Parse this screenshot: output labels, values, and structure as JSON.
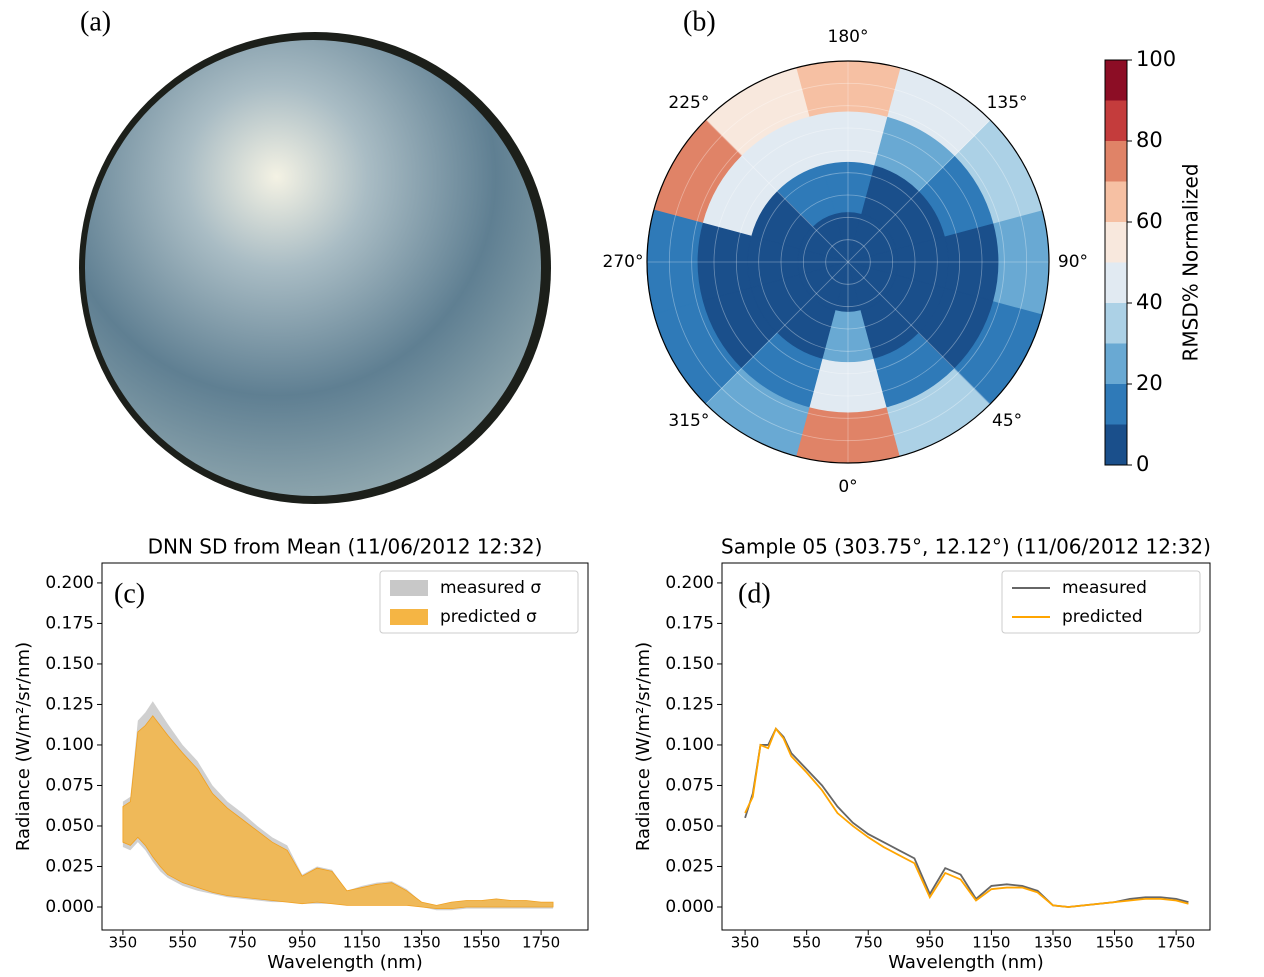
{
  "panel_labels": [
    "(a)",
    "(b)",
    "(c)",
    "(d)"
  ],
  "chart_data": [
    {
      "type": "polar-contour",
      "angle_ticks": [
        {
          "value": 0,
          "label": "0°"
        },
        {
          "value": 45,
          "label": "45°"
        },
        {
          "value": 90,
          "label": "90°"
        },
        {
          "value": 135,
          "label": "135°"
        },
        {
          "value": 180,
          "label": "180°"
        },
        {
          "value": 225,
          "label": "225°"
        },
        {
          "value": 270,
          "label": "270°"
        },
        {
          "value": 315,
          "label": "315°"
        }
      ],
      "theta": [
        0,
        30,
        60,
        90,
        120,
        150,
        180,
        210,
        240,
        270,
        300,
        330
      ],
      "values": [
        [
          5,
          5,
          5,
          5,
          5,
          5,
          5,
          5,
          5,
          5,
          5,
          5
        ],
        [
          20,
          8,
          6,
          6,
          6,
          6,
          15,
          12,
          6,
          6,
          6,
          6
        ],
        [
          45,
          15,
          8,
          8,
          15,
          25,
          45,
          40,
          45,
          8,
          8,
          12
        ],
        [
          70,
          35,
          18,
          22,
          35,
          45,
          65,
          55,
          75,
          15,
          12,
          25
        ]
      ],
      "levels": [
        0,
        10,
        20,
        30,
        40,
        50,
        60,
        70,
        80,
        90,
        100
      ],
      "colors": [
        "#1a4f8b",
        "#2f7ab8",
        "#69a9d3",
        "#acd1e6",
        "#e1eaf2",
        "#f8e8dd",
        "#f6c0a3",
        "#e08367",
        "#c43c3c",
        "#8c0d25"
      ],
      "cbar_ticks": [
        0,
        20,
        40,
        60,
        80,
        100
      ],
      "cbar_label": "RMSD% Normalized"
    },
    {
      "type": "band",
      "title": "DNN SD from Mean (11/06/2012 12:32)",
      "xlabel": "Wavelength (nm)",
      "ylabel": "Radiance (W/m²/sr/nm)",
      "xlim": [
        280,
        1907
      ],
      "ylim": [
        -0.0142,
        0.2123
      ],
      "xticks": [
        350,
        550,
        750,
        950,
        1150,
        1350,
        1550,
        1750
      ],
      "yticks": [
        {
          "value": 0,
          "label": "0.000"
        },
        {
          "value": 0.025,
          "label": "0.025"
        },
        {
          "value": 0.05,
          "label": "0.050"
        },
        {
          "value": 0.075,
          "label": "0.075"
        },
        {
          "value": 0.1,
          "label": "0.100"
        },
        {
          "value": 0.125,
          "label": "0.125"
        },
        {
          "value": 0.15,
          "label": "0.150"
        },
        {
          "value": 0.175,
          "label": "0.175"
        },
        {
          "value": 0.2,
          "label": "0.200"
        }
      ],
      "legend": "upper right",
      "x": [
        350,
        375,
        400,
        425,
        450,
        475,
        500,
        550,
        600,
        650,
        700,
        750,
        800,
        850,
        900,
        950,
        1000,
        1050,
        1100,
        1150,
        1200,
        1250,
        1300,
        1350,
        1400,
        1450,
        1500,
        1550,
        1600,
        1650,
        1700,
        1750,
        1790
      ],
      "series": [
        {
          "name": "measured σ",
          "color": "#c8c8c8",
          "upper": [
            0.065,
            0.068,
            0.115,
            0.12,
            0.127,
            0.12,
            0.113,
            0.1,
            0.09,
            0.075,
            0.065,
            0.058,
            0.05,
            0.043,
            0.038,
            0.02,
            0.025,
            0.023,
            0.01,
            0.013,
            0.015,
            0.016,
            0.011,
            0.003,
            0.001,
            0.003,
            0.004,
            0.004,
            0.005,
            0.004,
            0.004,
            0.003,
            0.003
          ],
          "lower": [
            0.037,
            0.035,
            0.04,
            0.035,
            0.028,
            0.022,
            0.018,
            0.013,
            0.01,
            0.008,
            0.006,
            0.005,
            0.004,
            0.003,
            0.003,
            0.002,
            0.002,
            0.002,
            0.001,
            0.001,
            0.001,
            0.001,
            0.001,
            0,
            -0.002,
            -0.002,
            -0.001,
            -0.001,
            -0.001,
            -0.001,
            -0.001,
            -0.001,
            -0.001
          ]
        },
        {
          "name": "predicted σ",
          "color": "#f5b544",
          "upper": [
            0.062,
            0.065,
            0.108,
            0.112,
            0.118,
            0.112,
            0.106,
            0.095,
            0.085,
            0.07,
            0.061,
            0.054,
            0.047,
            0.04,
            0.035,
            0.019,
            0.024,
            0.022,
            0.01,
            0.012,
            0.014,
            0.015,
            0.01,
            0.003,
            0.001,
            0.003,
            0.004,
            0.004,
            0.005,
            0.004,
            0.004,
            0.003,
            0.003
          ],
          "lower": [
            0.04,
            0.038,
            0.043,
            0.038,
            0.031,
            0.025,
            0.02,
            0.015,
            0.012,
            0.009,
            0.007,
            0.006,
            0.005,
            0.004,
            0.003,
            0.002,
            0.003,
            0.002,
            0.001,
            0.001,
            0.001,
            0.001,
            0.001,
            0,
            -0.001,
            -0.001,
            0,
            0,
            0,
            0,
            0,
            0,
            0
          ]
        }
      ]
    },
    {
      "type": "line",
      "title": "Sample 05 (303.75°, 12.12°) (11/06/2012 12:32)",
      "xlabel": "Wavelength (nm)",
      "ylabel": "Radiance (W/m²/sr/nm)",
      "xlim": [
        275,
        1860
      ],
      "ylim": [
        -0.0142,
        0.2123
      ],
      "xticks": [
        350,
        550,
        750,
        950,
        1150,
        1350,
        1550,
        1750
      ],
      "yticks": [
        {
          "value": 0,
          "label": "0.000"
        },
        {
          "value": 0.025,
          "label": "0.025"
        },
        {
          "value": 0.05,
          "label": "0.050"
        },
        {
          "value": 0.075,
          "label": "0.075"
        },
        {
          "value": 0.1,
          "label": "0.100"
        },
        {
          "value": 0.125,
          "label": "0.125"
        },
        {
          "value": 0.15,
          "label": "0.150"
        },
        {
          "value": 0.175,
          "label": "0.175"
        },
        {
          "value": 0.2,
          "label": "0.200"
        }
      ],
      "legend": "upper right",
      "x": [
        350,
        375,
        400,
        425,
        450,
        475,
        500,
        550,
        600,
        650,
        700,
        750,
        800,
        850,
        900,
        950,
        1000,
        1050,
        1100,
        1150,
        1200,
        1250,
        1300,
        1350,
        1400,
        1450,
        1500,
        1550,
        1600,
        1650,
        1700,
        1750,
        1790
      ],
      "series": [
        {
          "name": "measured",
          "color": "#666666",
          "values": [
            0.055,
            0.07,
            0.1,
            0.1,
            0.11,
            0.105,
            0.095,
            0.085,
            0.075,
            0.062,
            0.052,
            0.045,
            0.04,
            0.035,
            0.03,
            0.008,
            0.024,
            0.02,
            0.005,
            0.013,
            0.014,
            0.013,
            0.01,
            0.001,
            0,
            0.001,
            0.002,
            0.003,
            0.005,
            0.006,
            0.006,
            0.005,
            0.003
          ]
        },
        {
          "name": "predicted",
          "color": "#ffa500",
          "values": [
            0.058,
            0.068,
            0.1,
            0.098,
            0.11,
            0.104,
            0.093,
            0.083,
            0.072,
            0.058,
            0.05,
            0.043,
            0.037,
            0.032,
            0.027,
            0.006,
            0.021,
            0.017,
            0.004,
            0.011,
            0.012,
            0.012,
            0.009,
            0.001,
            0,
            0.001,
            0.002,
            0.003,
            0.004,
            0.005,
            0.005,
            0.004,
            0.002
          ]
        }
      ]
    }
  ]
}
